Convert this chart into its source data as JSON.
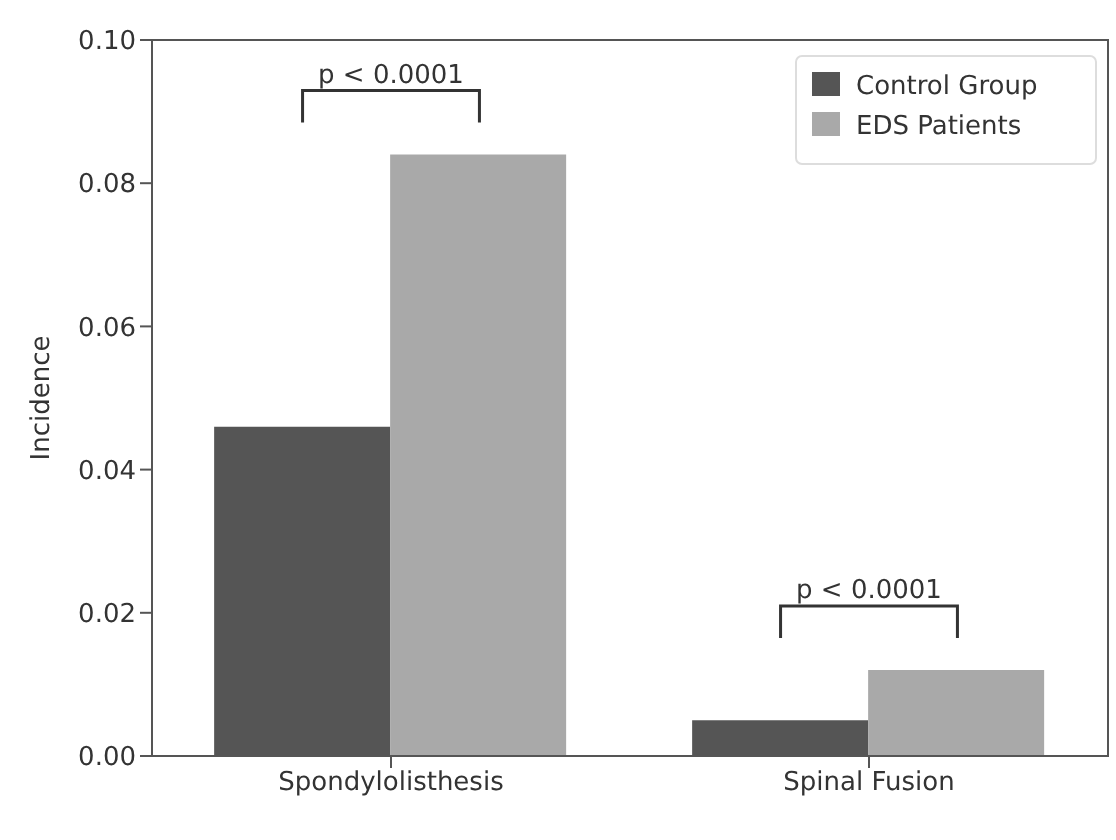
{
  "chart_data": {
    "type": "bar",
    "ylabel": "Incidence",
    "categories": [
      "Spondylolisthesis",
      "Spinal Fusion"
    ],
    "series": [
      {
        "name": "Control Group",
        "color": "#555555",
        "values": [
          0.046,
          0.005
        ]
      },
      {
        "name": "EDS Patients",
        "color": "#a9a9a9",
        "values": [
          0.084,
          0.012
        ]
      }
    ],
    "ylim": [
      0,
      0.1
    ],
    "yticks": [
      {
        "value": 0,
        "label": "0.00"
      },
      {
        "value": 0.02,
        "label": "0.02"
      },
      {
        "value": 0.04,
        "label": "0.04"
      },
      {
        "value": 0.06,
        "label": "0.06"
      },
      {
        "value": 0.08,
        "label": "0.08"
      },
      {
        "value": 0.1,
        "label": "0.10"
      }
    ],
    "legend": "top right",
    "annotations": [
      "p < 0.0001",
      "p < 0.0001"
    ]
  }
}
